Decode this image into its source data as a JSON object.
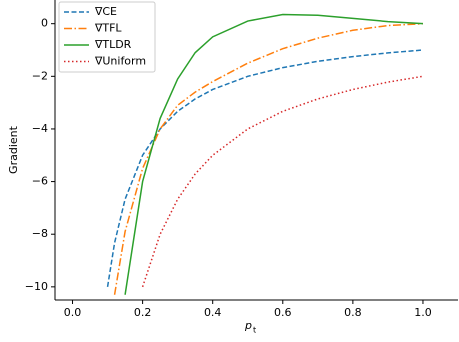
{
  "chart_data": {
    "type": "line",
    "ylabel": "Gradient",
    "xlabel": [
      "p",
      "t"
    ],
    "x": [
      0.1,
      0.12,
      0.15,
      0.2,
      0.25,
      0.3,
      0.35,
      0.4,
      0.5,
      0.6,
      0.7,
      0.8,
      0.9,
      1.0
    ],
    "series": [
      {
        "name": "∇CE",
        "color": "#1f77b4",
        "dash": "5,2.5",
        "values": [
          -10,
          -8.33,
          -6.67,
          -5,
          -4,
          -3.33,
          -2.86,
          -2.5,
          -2,
          -1.67,
          -1.43,
          -1.25,
          -1.11,
          -1
        ]
      },
      {
        "name": "∇TFL",
        "color": "#ff7f0e",
        "dash": "8,2.5,1.5,2.5",
        "values": [
          null,
          -10.3,
          -7.9,
          -5.5,
          -4.0,
          -3.1,
          -2.6,
          -2.2,
          -1.5,
          -0.95,
          -0.55,
          -0.25,
          -0.07,
          0
        ]
      },
      {
        "name": "∇TLDR",
        "color": "#2ca02c",
        "dash": "none",
        "values": [
          null,
          null,
          -10.3,
          -6.0,
          -3.6,
          -2.1,
          -1.1,
          -0.5,
          0.1,
          0.35,
          0.32,
          0.2,
          0.08,
          0
        ]
      },
      {
        "name": "∇Uniform",
        "color": "#d62728",
        "dash": "1.5,2.5",
        "values": [
          null,
          null,
          null,
          -10,
          -8,
          -6.67,
          -5.71,
          -5,
          -4,
          -3.33,
          -2.86,
          -2.5,
          -2.22,
          -2
        ]
      }
    ],
    "xlim": [
      -0.05,
      1.1
    ],
    "ylim": [
      -10.5,
      0.9
    ],
    "xticks": [
      {
        "value": 0,
        "label": "0.0"
      },
      {
        "value": 0.2,
        "label": "0.2"
      },
      {
        "value": 0.4,
        "label": "0.4"
      },
      {
        "value": 0.6,
        "label": "0.6"
      },
      {
        "value": 0.8,
        "label": "0.8"
      },
      {
        "value": 1,
        "label": "1.0"
      }
    ],
    "yticks": [
      {
        "value": 0,
        "label": "0"
      },
      {
        "value": -2,
        "label": "−2"
      },
      {
        "value": -4,
        "label": "−4"
      },
      {
        "value": -6,
        "label": "−6"
      },
      {
        "value": -8,
        "label": "−8"
      },
      {
        "value": -10,
        "label": "−10"
      }
    ],
    "legend": "upper left"
  }
}
